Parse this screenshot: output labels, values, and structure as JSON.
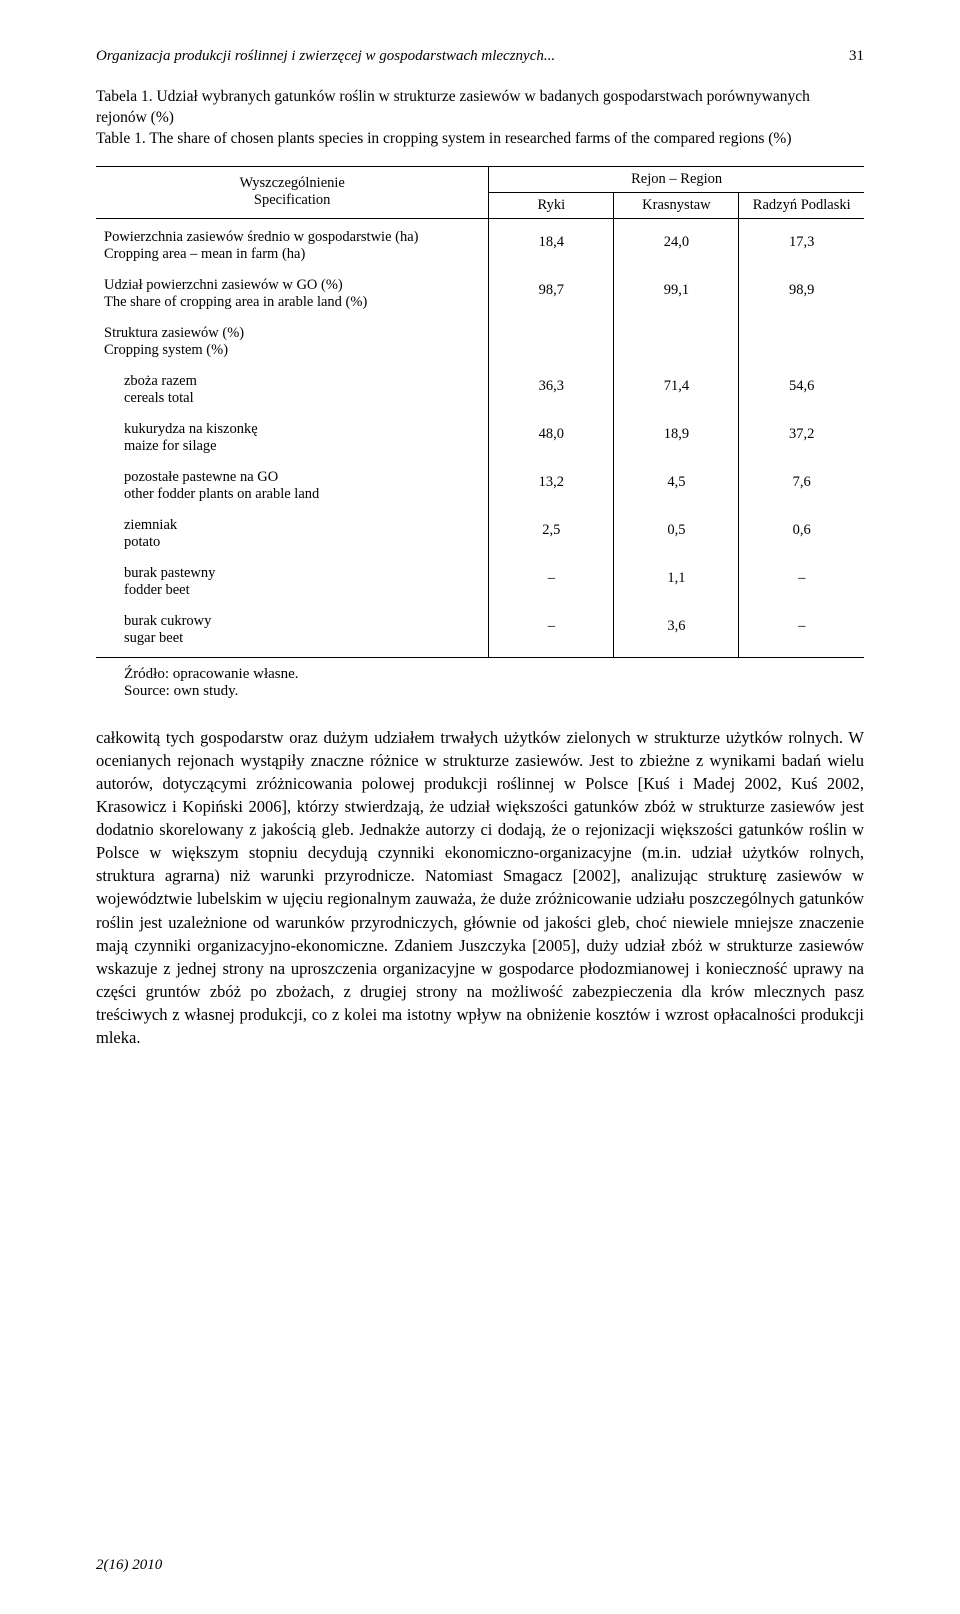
{
  "running_head": {
    "title": "Organizacja produkcji roślinnej i zwierzęcej w gospodarstwach mlecznych...",
    "page_number": "31"
  },
  "table": {
    "caption_pl_label": "Tabela 1.",
    "caption_pl": "Udział wybranych gatunków roślin w strukturze zasiewów w badanych gospodarstwach porównywanych rejonów (%)",
    "caption_en_label": "Table 1.",
    "caption_en": "The share of chosen plants species in cropping system in researched farms of the compared regions (%)",
    "spec_header_pl": "Wyszczególnienie",
    "spec_header_en": "Specification",
    "region_group": "Rejon – Region",
    "regions": [
      "Ryki",
      "Krasnystaw",
      "Radzyń Podlaski"
    ],
    "rows": [
      {
        "label_pl": "Powierzchnia zasiewów średnio w gospodarstwie (ha)",
        "label_en": "Cropping area – mean in farm (ha)",
        "indent": false,
        "values": [
          "18,4",
          "24,0",
          "17,3"
        ]
      },
      {
        "label_pl": "Udział powierzchni zasiewów w GO (%)",
        "label_en": "The share of cropping area in arable land (%)",
        "indent": false,
        "values": [
          "98,7",
          "99,1",
          "98,9"
        ]
      },
      {
        "label_pl": "Struktura zasiewów (%)",
        "label_en": "Cropping system (%)",
        "indent": false,
        "values": [
          "",
          "",
          ""
        ]
      },
      {
        "label_pl": "zboża razem",
        "label_en": "cereals total",
        "indent": true,
        "values": [
          "36,3",
          "71,4",
          "54,6"
        ]
      },
      {
        "label_pl": "kukurydza na kiszonkę",
        "label_en": "maize for silage",
        "indent": true,
        "values": [
          "48,0",
          "18,9",
          "37,2"
        ]
      },
      {
        "label_pl": "pozostałe pastewne na GO",
        "label_en": "other fodder plants on arable land",
        "indent": true,
        "values": [
          "13,2",
          "4,5",
          "7,6"
        ]
      },
      {
        "label_pl": "ziemniak",
        "label_en": "potato",
        "indent": true,
        "values": [
          "2,5",
          "0,5",
          "0,6"
        ]
      },
      {
        "label_pl": "burak pastewny",
        "label_en": "fodder beet",
        "indent": true,
        "values": [
          "–",
          "1,1",
          "–"
        ]
      },
      {
        "label_pl": "burak cukrowy",
        "label_en": "sugar beet",
        "indent": true,
        "values": [
          "–",
          "3,6",
          "–"
        ]
      }
    ],
    "source_pl": "Źródło: opracowanie własne.",
    "source_en": "Source: own study."
  },
  "body": "całkowitą tych gospodarstw oraz dużym udziałem trwałych użytków zielonych w strukturze użytków rolnych. W ocenianych rejonach wystąpiły znaczne różnice w strukturze zasiewów. Jest to zbieżne z wynikami badań wielu autorów, dotyczącymi zróżnicowania polowej produkcji roślinnej w Polsce [Kuś i Madej 2002, Kuś 2002, Krasowicz i Kopiński 2006], którzy stwierdzają, że udział większości gatunków zbóż w strukturze zasiewów jest dodatnio skorelowany z jakością gleb. Jednakże autorzy ci dodają, że o rejonizacji większości gatunków roślin w Polsce w większym stopniu decydują czynniki ekonomiczno-organizacyjne (m.in. udział użytków rolnych, struktura agrarna) niż warunki przyrodnicze. Natomiast Smagacz [2002], analizując strukturę zasiewów w województwie lubelskim w ujęciu regionalnym zauważa, że duże zróżnicowanie udziału poszczególnych gatunków roślin jest uzależnione od warunków przyrodniczych, głównie od jakości gleb, choć niewiele mniejsze znaczenie mają czynniki organizacyjno-ekonomiczne. Zdaniem Juszczyka [2005], duży udział zbóż w strukturze zasiewów wskazuje z jednej strony na uproszczenia organizacyjne w gospodarce płodozmianowej i konieczność uprawy na części gruntów zbóż po zbożach, z drugiej strony na możliwość zabezpieczenia dla krów mlecznych pasz treściwych z własnej produkcji, co z kolei ma istotny wpływ na obniżenie kosztów i wzrost opłacalności produkcji mleka.",
  "footer": "2(16) 2010"
}
